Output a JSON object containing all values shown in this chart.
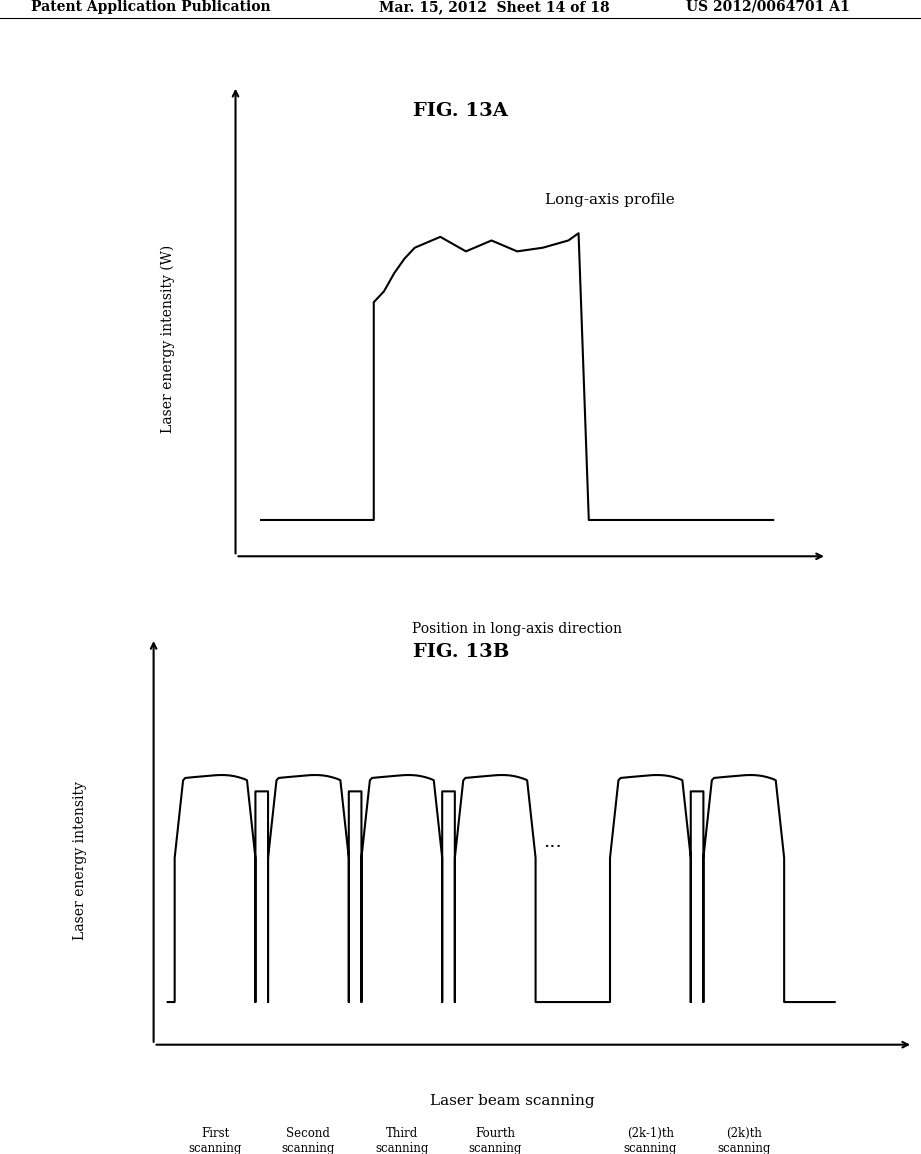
{
  "bg_color": "#ffffff",
  "header_left": "Patent Application Publication",
  "header_mid": "Mar. 15, 2012  Sheet 14 of 18",
  "header_right": "US 2012/0064701 A1",
  "fig13a_title": "FIG. 13A",
  "fig13a_ylabel": "Laser energy intensity (W)",
  "fig13a_xlabel": "Position in long-axis direction",
  "fig13a_annotation": "Long-axis profile",
  "fig13b_title": "FIG. 13B",
  "fig13b_ylabel": "Laser energy intensity",
  "fig13b_xlabel": "Laser beam scanning",
  "fig13b_labels": [
    "First\nscanning",
    "Second\nscanning",
    "Third\nscanning",
    "Fourth\nscanning",
    "(2k-1)th\nscanning",
    "(2k)th\nscanning"
  ],
  "fig13b_dots": "...",
  "line_color": "#000000",
  "line_width": 1.5
}
